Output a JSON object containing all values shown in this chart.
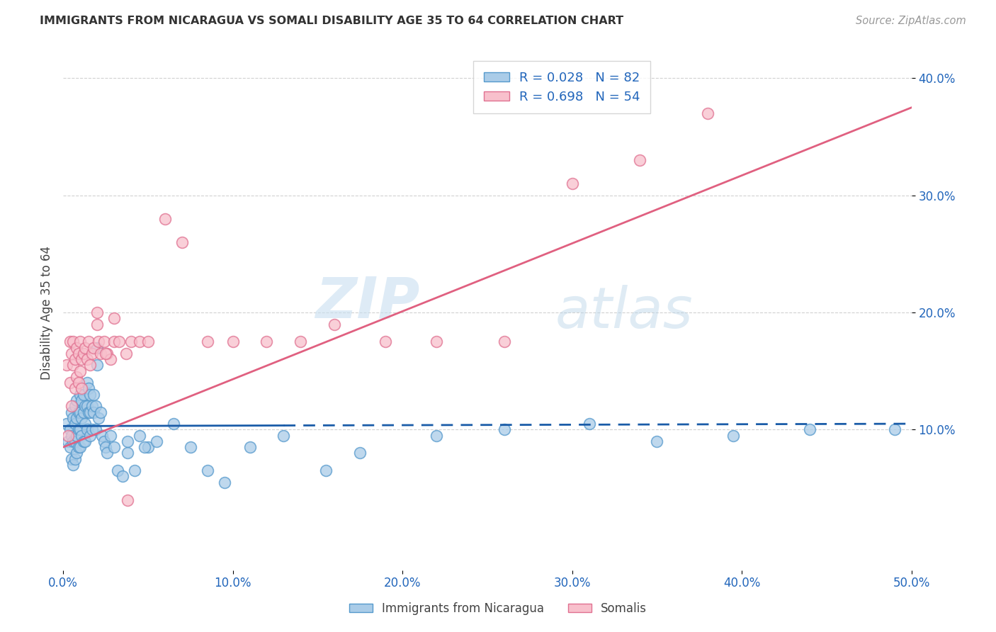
{
  "title": "IMMIGRANTS FROM NICARAGUA VS SOMALI DISABILITY AGE 35 TO 64 CORRELATION CHART",
  "source": "Source: ZipAtlas.com",
  "ylabel": "Disability Age 35 to 64",
  "xlim": [
    0.0,
    0.5
  ],
  "ylim": [
    -0.02,
    0.42
  ],
  "xticks": [
    0.0,
    0.1,
    0.2,
    0.3,
    0.4,
    0.5
  ],
  "yticks": [
    0.1,
    0.2,
    0.3,
    0.4
  ],
  "xtick_labels": [
    "0.0%",
    "10.0%",
    "20.0%",
    "30.0%",
    "40.0%",
    "50.0%"
  ],
  "ytick_labels": [
    "10.0%",
    "20.0%",
    "30.0%",
    "40.0%"
  ],
  "nicaragua_R": 0.028,
  "nicaragua_N": 82,
  "somali_R": 0.698,
  "somali_N": 54,
  "nicaragua_color": "#aacce8",
  "nicaragua_edge_color": "#5599cc",
  "somali_color": "#f8c0cc",
  "somali_edge_color": "#e07090",
  "nicaragua_line_color": "#1a5ca8",
  "somali_line_color": "#e06080",
  "nicaragua_x": [
    0.002,
    0.003,
    0.004,
    0.004,
    0.005,
    0.005,
    0.005,
    0.006,
    0.006,
    0.006,
    0.007,
    0.007,
    0.007,
    0.007,
    0.008,
    0.008,
    0.008,
    0.008,
    0.009,
    0.009,
    0.009,
    0.01,
    0.01,
    0.01,
    0.01,
    0.011,
    0.011,
    0.011,
    0.012,
    0.012,
    0.012,
    0.013,
    0.013,
    0.013,
    0.014,
    0.014,
    0.014,
    0.015,
    0.015,
    0.016,
    0.016,
    0.016,
    0.017,
    0.017,
    0.018,
    0.018,
    0.019,
    0.019,
    0.02,
    0.02,
    0.021,
    0.022,
    0.023,
    0.024,
    0.025,
    0.026,
    0.028,
    0.03,
    0.032,
    0.035,
    0.038,
    0.042,
    0.045,
    0.05,
    0.055,
    0.065,
    0.075,
    0.085,
    0.095,
    0.11,
    0.13,
    0.155,
    0.175,
    0.22,
    0.26,
    0.31,
    0.35,
    0.395,
    0.44,
    0.49,
    0.038,
    0.048
  ],
  "nicaragua_y": [
    0.105,
    0.09,
    0.1,
    0.085,
    0.115,
    0.095,
    0.075,
    0.11,
    0.09,
    0.07,
    0.12,
    0.105,
    0.09,
    0.075,
    0.125,
    0.11,
    0.095,
    0.08,
    0.115,
    0.1,
    0.085,
    0.13,
    0.115,
    0.1,
    0.085,
    0.125,
    0.11,
    0.095,
    0.13,
    0.115,
    0.09,
    0.12,
    0.105,
    0.09,
    0.14,
    0.12,
    0.1,
    0.135,
    0.115,
    0.13,
    0.115,
    0.095,
    0.12,
    0.1,
    0.13,
    0.115,
    0.12,
    0.1,
    0.17,
    0.155,
    0.11,
    0.115,
    0.095,
    0.09,
    0.085,
    0.08,
    0.095,
    0.085,
    0.065,
    0.06,
    0.08,
    0.065,
    0.095,
    0.085,
    0.09,
    0.105,
    0.085,
    0.065,
    0.055,
    0.085,
    0.095,
    0.065,
    0.08,
    0.095,
    0.1,
    0.105,
    0.09,
    0.095,
    0.1,
    0.1,
    0.09,
    0.085
  ],
  "somali_x": [
    0.002,
    0.003,
    0.004,
    0.004,
    0.005,
    0.005,
    0.006,
    0.006,
    0.007,
    0.007,
    0.008,
    0.008,
    0.009,
    0.009,
    0.01,
    0.01,
    0.011,
    0.011,
    0.012,
    0.013,
    0.014,
    0.015,
    0.016,
    0.017,
    0.018,
    0.02,
    0.021,
    0.022,
    0.024,
    0.026,
    0.028,
    0.03,
    0.033,
    0.037,
    0.04,
    0.045,
    0.05,
    0.06,
    0.07,
    0.085,
    0.1,
    0.12,
    0.14,
    0.16,
    0.19,
    0.22,
    0.26,
    0.3,
    0.34,
    0.38,
    0.02,
    0.025,
    0.03,
    0.038
  ],
  "somali_y": [
    0.155,
    0.095,
    0.175,
    0.14,
    0.165,
    0.12,
    0.155,
    0.175,
    0.16,
    0.135,
    0.17,
    0.145,
    0.165,
    0.14,
    0.175,
    0.15,
    0.16,
    0.135,
    0.165,
    0.17,
    0.16,
    0.175,
    0.155,
    0.165,
    0.17,
    0.2,
    0.175,
    0.165,
    0.175,
    0.165,
    0.16,
    0.175,
    0.175,
    0.165,
    0.175,
    0.175,
    0.175,
    0.28,
    0.26,
    0.175,
    0.175,
    0.175,
    0.175,
    0.19,
    0.175,
    0.175,
    0.175,
    0.31,
    0.33,
    0.37,
    0.19,
    0.165,
    0.195,
    0.04
  ],
  "nic_line_start_x": 0.0,
  "nic_line_end_solid_x": 0.13,
  "nic_line_end_x": 0.5,
  "nic_line_y_at_0": 0.103,
  "nic_line_y_at_05": 0.105,
  "som_line_y_at_0": 0.085,
  "som_line_y_at_05": 0.375,
  "watermark_zip": "ZIP",
  "watermark_atlas": "atlas",
  "background_color": "#ffffff",
  "grid_color": "#cccccc"
}
